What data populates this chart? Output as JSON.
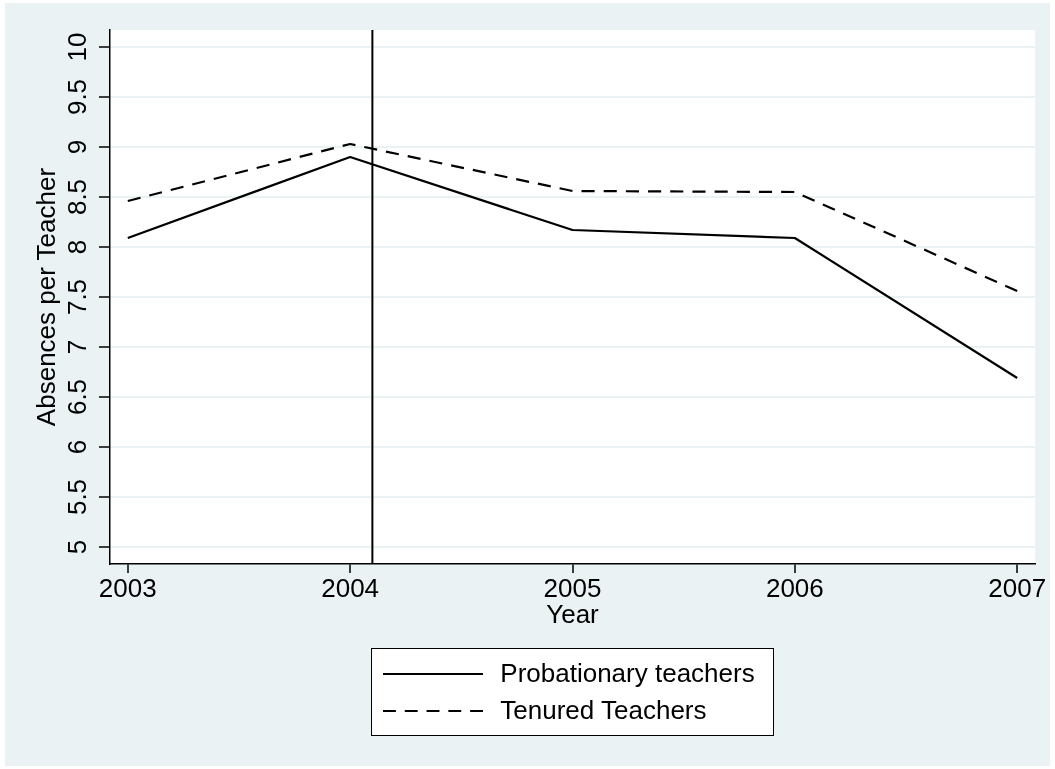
{
  "chart_data": {
    "type": "line",
    "xlabel": "Year",
    "ylabel": "Absences per Teacher",
    "x": [
      2003,
      2004,
      2005,
      2006,
      2007
    ],
    "series": [
      {
        "name": "Probationary teachers",
        "color": "#000000",
        "line_style": "solid",
        "values": [
          8.09,
          8.9,
          8.17,
          8.09,
          6.69
        ]
      },
      {
        "name": "Tenured Teachers",
        "color": "#000000",
        "line_style": "dashed",
        "values": [
          8.46,
          9.03,
          8.56,
          8.55,
          7.56
        ]
      }
    ],
    "xlim": [
      2002.92,
      2007.08
    ],
    "ylim": [
      4.83,
      10.17
    ],
    "xticks": [
      2003,
      2004,
      2005,
      2006,
      2007
    ],
    "yticks": [
      5,
      5.5,
      6,
      6.5,
      7,
      7.5,
      8,
      8.5,
      9,
      9.5,
      10
    ],
    "grid": "y",
    "legend": "bottom",
    "ref_lines": [
      {
        "axis": "x",
        "value": 2004.1,
        "color": "#000000"
      }
    ]
  }
}
